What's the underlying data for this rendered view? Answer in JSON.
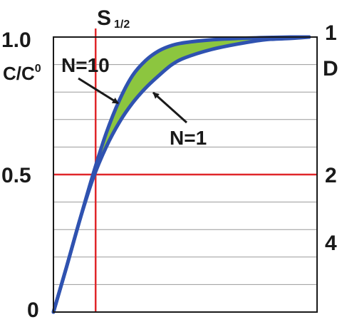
{
  "chart_data": {
    "type": "area",
    "title": "",
    "top_label": {
      "main": "S",
      "sub": "1/2"
    },
    "ylabel": {
      "main": "C/C",
      "sup": "0"
    },
    "left_ticks": [
      "1.0",
      "0.5",
      "0"
    ],
    "right_label": "D",
    "right_ticks": [
      "1",
      "2",
      "4"
    ],
    "ylim": [
      0,
      1
    ],
    "xlim": [
      0,
      1
    ],
    "grid": "horizontal",
    "reference_lines": {
      "y": 0.5,
      "x": 0.16
    },
    "series": [
      {
        "name": "N=10",
        "x": [
          0,
          0.05,
          0.1,
          0.15,
          0.2,
          0.25,
          0.3,
          0.35,
          0.4,
          0.45,
          0.5,
          0.6,
          0.7,
          0.8,
          0.9,
          0.97
        ],
        "y": [
          0,
          0.165,
          0.335,
          0.5,
          0.65,
          0.77,
          0.86,
          0.915,
          0.95,
          0.97,
          0.98,
          0.99,
          0.995,
          0.998,
          1.0,
          1.0
        ]
      },
      {
        "name": "N=1",
        "x": [
          0,
          0.05,
          0.1,
          0.15,
          0.2,
          0.25,
          0.3,
          0.35,
          0.4,
          0.45,
          0.5,
          0.6,
          0.7,
          0.8,
          0.9,
          0.97
        ],
        "y": [
          0,
          0.165,
          0.335,
          0.485,
          0.6,
          0.69,
          0.76,
          0.815,
          0.86,
          0.9,
          0.925,
          0.955,
          0.975,
          0.99,
          0.995,
          1.0
        ]
      }
    ],
    "annotations": [
      {
        "text": "N=10",
        "target": "N=10"
      },
      {
        "text": "N=1",
        "target": "N=1"
      }
    ],
    "colors": {
      "curve": "#2f52b0",
      "band_fill": "#8cc63f",
      "reference": "#e0262a",
      "grid": "#9a9a9a",
      "frame": "#1a1a1a",
      "arrow": "#1a1a1a"
    }
  }
}
